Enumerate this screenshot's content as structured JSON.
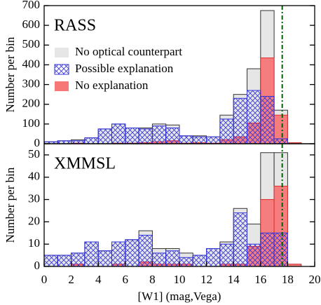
{
  "chart_data": [
    {
      "type": "histogram",
      "label": "RASS",
      "ylabel": "Number per bin",
      "bins": [
        0,
        1,
        2,
        3,
        4,
        5,
        6,
        7,
        8,
        9,
        10,
        11,
        12,
        13,
        14,
        15,
        16,
        17,
        18,
        19,
        20
      ],
      "series": [
        {
          "name": "No optical counterpart",
          "color": "#e6e6e6",
          "values": [
            10,
            15,
            20,
            30,
            75,
            100,
            80,
            80,
            100,
            95,
            40,
            40,
            35,
            145,
            250,
            380,
            675,
            170,
            5,
            0
          ]
        },
        {
          "name": "Possible explanation",
          "color": "#3333dd",
          "hatch": "cross",
          "values": [
            10,
            15,
            15,
            30,
            75,
            100,
            80,
            75,
            90,
            80,
            40,
            35,
            35,
            125,
            230,
            270,
            240,
            25,
            0,
            0
          ]
        },
        {
          "name": "No explanation",
          "color": "#f77777",
          "values": [
            0,
            0,
            3,
            0,
            0,
            3,
            3,
            5,
            10,
            15,
            3,
            5,
            3,
            20,
            35,
            105,
            435,
            145,
            5,
            0
          ]
        }
      ],
      "vline": 17.6,
      "vline_color": "#006400",
      "xlim": [
        0,
        20
      ],
      "ylim": [
        0,
        700
      ],
      "yticks": [
        0,
        100,
        200,
        300,
        400,
        500,
        600,
        700
      ],
      "legend": "upper left"
    },
    {
      "type": "histogram",
      "label": "XMMSL",
      "ylabel": "Number per bin",
      "xlabel": "[W1] (mag,Vega)",
      "bins": [
        0,
        1,
        2,
        3,
        4,
        5,
        6,
        7,
        8,
        9,
        10,
        11,
        12,
        13,
        14,
        15,
        16,
        17,
        18,
        19,
        20
      ],
      "series": [
        {
          "name": "No optical counterpart",
          "color": "#e6e6e6",
          "values": [
            5,
            5,
            6,
            11,
            7,
            11,
            12,
            16,
            8,
            8,
            6,
            5,
            8,
            11,
            26,
            19,
            51,
            51,
            1,
            0
          ]
        },
        {
          "name": "Possible explanation",
          "color": "#3333dd",
          "hatch": "cross",
          "values": [
            5,
            5,
            6,
            11,
            7,
            11,
            12,
            14,
            6,
            7,
            4,
            5,
            8,
            10,
            24,
            10,
            15,
            15,
            0,
            0
          ]
        },
        {
          "name": "No explanation",
          "color": "#f77777",
          "values": [
            0,
            0,
            1,
            0,
            0,
            1,
            0,
            2,
            1,
            1,
            1,
            0,
            0,
            1,
            1,
            9,
            30,
            36,
            1,
            0
          ]
        }
      ],
      "vline": 17.6,
      "vline_color": "#006400",
      "xlim": [
        0,
        20
      ],
      "ylim": [
        0,
        55
      ],
      "yticks": [
        0,
        10,
        20,
        30,
        40,
        50
      ],
      "xticks": [
        0,
        2,
        4,
        6,
        8,
        10,
        12,
        14,
        16,
        18,
        20
      ]
    }
  ]
}
